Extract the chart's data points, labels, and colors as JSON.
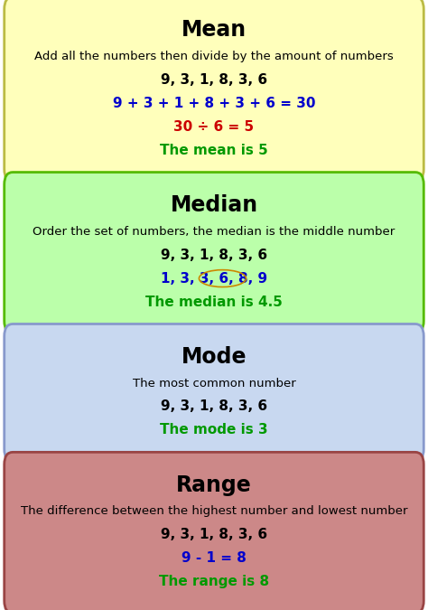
{
  "background_color": "#ffffff",
  "cards": [
    {
      "bg_color": "#ffffbb",
      "border_color": "#bbbb44",
      "title": "Mean",
      "title_color": "#000000",
      "lines": [
        {
          "text": "Add all the numbers then divide by the amount of numbers",
          "color": "#000000",
          "size": 9.5,
          "bold": false
        },
        {
          "text": "9, 3, 1, 8, 3, 6",
          "color": "#000000",
          "size": 11,
          "bold": true
        },
        {
          "text": "9 + 3 + 1 + 8 + 3 + 6 = 30",
          "color": "#0000cc",
          "size": 11,
          "bold": true
        },
        {
          "text": "30 ÷ 6 = 5",
          "color": "#cc0000",
          "size": 11,
          "bold": true
        },
        {
          "text": "The mean is 5",
          "color": "#009900",
          "size": 11,
          "bold": true
        }
      ]
    },
    {
      "bg_color": "#bbffaa",
      "border_color": "#55bb00",
      "title": "Median",
      "title_color": "#000000",
      "lines": [
        {
          "text": "Order the set of numbers, the median is the middle number",
          "color": "#000000",
          "size": 9.5,
          "bold": false
        },
        {
          "text": "9, 3, 1, 8, 3, 6",
          "color": "#000000",
          "size": 11,
          "bold": true
        },
        {
          "text": "1, 3, 3, 6, 8, 9",
          "color": "#0000cc",
          "size": 11,
          "bold": true,
          "circle": true
        },
        {
          "text": "The median is 4.5",
          "color": "#009900",
          "size": 11,
          "bold": true
        }
      ]
    },
    {
      "bg_color": "#c8d8f0",
      "border_color": "#8899cc",
      "title": "Mode",
      "title_color": "#000000",
      "lines": [
        {
          "text": "The most common number",
          "color": "#000000",
          "size": 9.5,
          "bold": false
        },
        {
          "text": "9, 3, 1, 8, 3, 6",
          "color": "#000000",
          "size": 11,
          "bold": true
        },
        {
          "text": "The mode is 3",
          "color": "#009900",
          "size": 11,
          "bold": true
        }
      ]
    },
    {
      "bg_color": "#cc8888",
      "border_color": "#994444",
      "title": "Range",
      "title_color": "#000000",
      "lines": [
        {
          "text": "The difference between the highest number and lowest number",
          "color": "#000000",
          "size": 9.5,
          "bold": false
        },
        {
          "text": "9, 3, 1, 8, 3, 6",
          "color": "#000000",
          "size": 11,
          "bold": true
        },
        {
          "text": "9 - 1 = 8",
          "color": "#0000cc",
          "size": 11,
          "bold": true
        },
        {
          "text": "The range is 8",
          "color": "#009900",
          "size": 11,
          "bold": true
        }
      ]
    }
  ],
  "title_fontsize": 17,
  "fig_width": 4.74,
  "fig_height": 6.75
}
